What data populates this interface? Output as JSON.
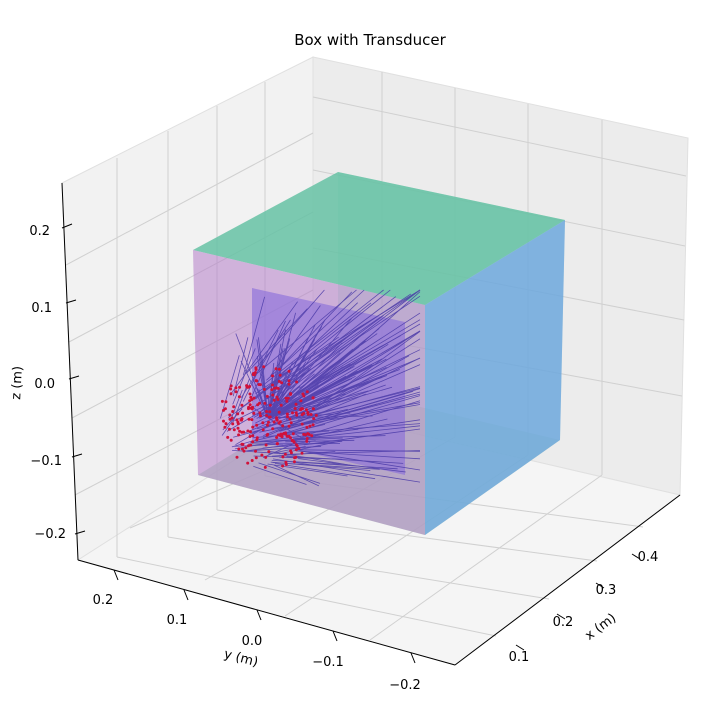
{
  "chart_data": {
    "type": "scatter3d",
    "title": "Box with Transducer",
    "xlabel": "x (m)",
    "ylabel": "y (m)",
    "zlabel": "z (m)",
    "xlim": [
      0.05,
      0.45
    ],
    "ylim": [
      -0.22,
      0.22
    ],
    "zlim": [
      -0.22,
      0.24
    ],
    "xticks": [
      "0.1",
      "0.2",
      "0.3",
      "0.4"
    ],
    "yticks": [
      "0.2",
      "0.1",
      "0.0",
      "−0.1",
      "−0.2"
    ],
    "zticks": [
      "0.2",
      "0.1",
      "0.0",
      "−0.1",
      "−0.2"
    ],
    "grid": true,
    "box": {
      "x": [
        0.1,
        0.4
      ],
      "y": [
        -0.15,
        0.15
      ],
      "z": [
        -0.15,
        0.15
      ]
    },
    "faces": [
      {
        "name": "top",
        "color": "#66c2a5"
      },
      {
        "name": "right",
        "color": "#6aa4e0"
      },
      {
        "name": "front",
        "color": "#b57ec9"
      },
      {
        "name": "bottom",
        "color": "#a9d3b5"
      },
      {
        "name": "inner",
        "color": "#5b5ff0"
      }
    ],
    "transducer": {
      "center": [
        0.12,
        0.05,
        -0.03
      ],
      "radius": 0.06,
      "point_color": "#d0113a",
      "vector_color": "#4a3aa8"
    }
  }
}
